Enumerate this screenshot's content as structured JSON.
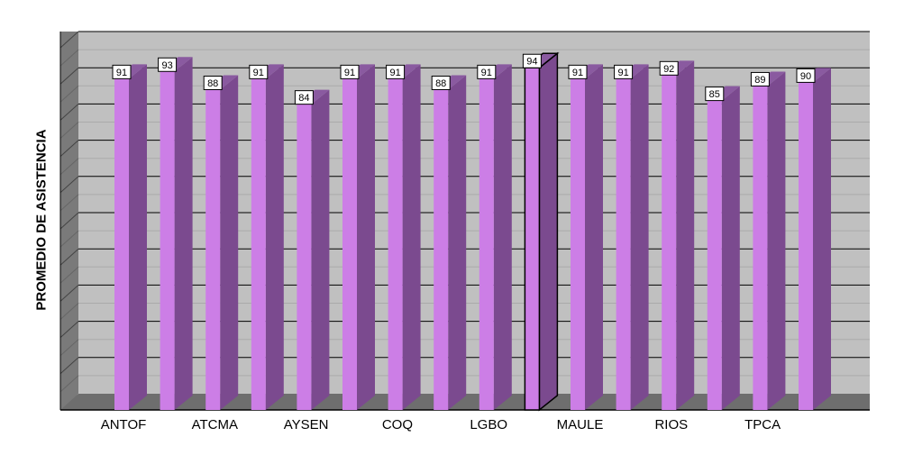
{
  "chart_data": {
    "type": "bar",
    "ylabel": "PROMEDIO DE ASISTENCIA",
    "xlabel": "",
    "title": "",
    "ylim": [
      0,
      100
    ],
    "grid": true,
    "three_d": true,
    "categories": [
      "ANTOF",
      "ATCMA",
      "AYSEN",
      "COQ",
      "LGBO",
      "MAULE",
      "RIOS",
      "TPCA"
    ],
    "bars": [
      {
        "value": 91,
        "label": "91"
      },
      {
        "value": 93,
        "label": "93"
      },
      {
        "value": 88,
        "label": "88"
      },
      {
        "value": 91,
        "label": "91"
      },
      {
        "value": 84,
        "label": "84"
      },
      {
        "value": 91,
        "label": "91"
      },
      {
        "value": 91,
        "label": "91"
      },
      {
        "value": 88,
        "label": "88"
      },
      {
        "value": 91,
        "label": "91"
      },
      {
        "value": 94,
        "label": "94",
        "highlighted": true
      },
      {
        "value": 91,
        "label": "91"
      },
      {
        "value": 91,
        "label": "91"
      },
      {
        "value": 92,
        "label": "92"
      },
      {
        "value": 85,
        "label": "85"
      },
      {
        "value": 89,
        "label": "89"
      },
      {
        "value": 90,
        "label": "90"
      }
    ],
    "colors": {
      "bar_front": "#cc7ee6",
      "bar_side": "#7b4a8f",
      "bar_top": "#8a5aa0",
      "plot_bg": "#c0c0c0",
      "wall_left": "#7a7a7a",
      "floor": "#6e6e6e",
      "grid": "#000000"
    }
  }
}
